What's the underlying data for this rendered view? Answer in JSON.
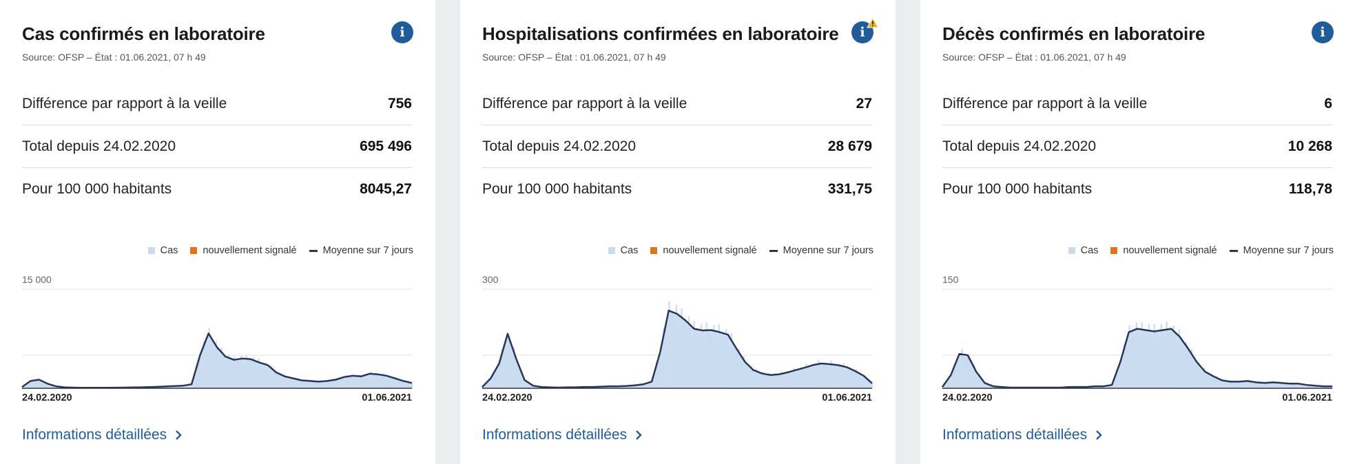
{
  "colors": {
    "accent": "#1f5c99",
    "bar_cases": "#c9dbee",
    "newly_reported": "#e2721c",
    "moving_avg": "#27355a",
    "warning": "#f2b21e"
  },
  "legend": {
    "cases": "Cas",
    "newly_reported": "nouvellement signalé",
    "moving_average": "Moyenne sur 7 jours"
  },
  "cards": [
    {
      "title": "Cas confirmés en laboratoire",
      "source": "Source: OFSP – État : 01.06.2021, 07 h 49",
      "info_icon": "info-icon",
      "warning": false,
      "stats": [
        {
          "label": "Différence par rapport à la veille",
          "value": "756"
        },
        {
          "label": "Total depuis 24.02.2020",
          "value": "695 496"
        },
        {
          "label": "Pour 100 000 habitants",
          "value": "8045,27"
        }
      ],
      "details_link": "Informations détaillées"
    },
    {
      "title": "Hospitalisations confirmées en laboratoire",
      "source": "Source: OFSP – État : 01.06.2021, 07 h 49",
      "info_icon": "info-icon",
      "warning": true,
      "stats": [
        {
          "label": "Différence par rapport à la veille",
          "value": "27"
        },
        {
          "label": "Total depuis 24.02.2020",
          "value": "28 679"
        },
        {
          "label": "Pour 100 000 habitants",
          "value": "331,75"
        }
      ],
      "details_link": "Informations détaillées"
    },
    {
      "title": "Décès confirmés en laboratoire",
      "source": "Source: OFSP – État : 01.06.2021, 07 h 49",
      "info_icon": "info-icon",
      "warning": false,
      "stats": [
        {
          "label": "Différence par rapport à la veille",
          "value": "6"
        },
        {
          "label": "Total depuis 24.02.2020",
          "value": "10 268"
        },
        {
          "label": "Pour 100 000 habitants",
          "value": "118,78"
        }
      ],
      "details_link": "Informations détaillées"
    }
  ],
  "chart_data": [
    {
      "type": "area",
      "ymax_label": "15 000",
      "ylim": [
        0,
        15000
      ],
      "x_start_label": "24.02.2020",
      "x_end_label": "01.06.2021",
      "series": [
        {
          "name": "Moyenne sur 7 jours",
          "values": [
            200,
            1100,
            1300,
            700,
            300,
            150,
            100,
            80,
            70,
            70,
            80,
            90,
            100,
            120,
            150,
            180,
            220,
            280,
            330,
            400,
            600,
            5000,
            8300,
            6200,
            4800,
            4300,
            4500,
            4400,
            3900,
            3500,
            2400,
            1800,
            1500,
            1200,
            1100,
            1000,
            1100,
            1300,
            1700,
            1900,
            1800,
            2200,
            2100,
            1900,
            1500,
            1100,
            800
          ]
        }
      ]
    },
    {
      "type": "area",
      "ymax_label": "300",
      "ylim": [
        0,
        300
      ],
      "x_start_label": "24.02.2020",
      "x_end_label": "01.06.2021",
      "series": [
        {
          "name": "Moyenne sur 7 jours",
          "values": [
            4,
            30,
            75,
            165,
            90,
            25,
            8,
            4,
            3,
            2,
            3,
            3,
            4,
            4,
            5,
            6,
            6,
            7,
            9,
            12,
            20,
            110,
            235,
            225,
            205,
            180,
            175,
            176,
            170,
            162,
            120,
            80,
            55,
            45,
            40,
            42,
            48,
            55,
            62,
            70,
            75,
            73,
            70,
            64,
            52,
            38,
            15
          ]
        }
      ]
    },
    {
      "type": "area",
      "ymax_label": "150",
      "ylim": [
        0,
        150
      ],
      "x_start_label": "24.02.2020",
      "x_end_label": "01.06.2021",
      "series": [
        {
          "name": "Moyenne sur 7 jours",
          "values": [
            2,
            20,
            52,
            50,
            25,
            8,
            3,
            2,
            1,
            1,
            1,
            1,
            1,
            1,
            1,
            2,
            2,
            2,
            3,
            3,
            5,
            40,
            85,
            90,
            88,
            86,
            88,
            90,
            78,
            60,
            40,
            25,
            18,
            12,
            10,
            10,
            11,
            9,
            8,
            9,
            8,
            7,
            7,
            5,
            4,
            3,
            3
          ]
        }
      ]
    }
  ]
}
